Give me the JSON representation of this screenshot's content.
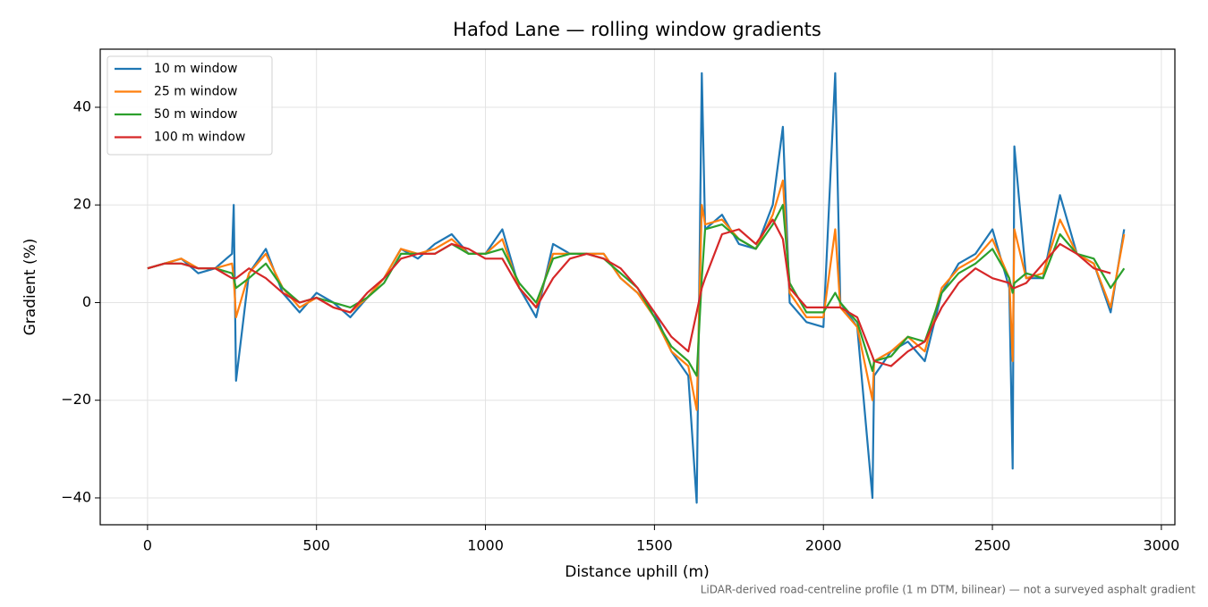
{
  "chart_data": {
    "type": "line",
    "title": "Hafod Lane — rolling window gradients",
    "xlabel": "Distance uphill (m)",
    "ylabel": "Gradient (%)",
    "footnote": "LiDAR-derived road-centreline profile (1 m DTM, bilinear) — not a surveyed asphalt gradient",
    "xlim": [
      -140,
      3040
    ],
    "ylim": [
      -45.5,
      51.9
    ],
    "xticks": [
      0,
      500,
      1000,
      1500,
      2000,
      2500,
      3000
    ],
    "yticks": [
      {
        "value": -40,
        "label": "−40"
      },
      {
        "value": -20,
        "label": "−20"
      },
      0,
      20,
      40
    ],
    "grid": true,
    "legend": "upper-left",
    "x": [
      0,
      50,
      100,
      150,
      200,
      250,
      255,
      262,
      300,
      350,
      400,
      450,
      500,
      550,
      600,
      650,
      700,
      750,
      800,
      850,
      900,
      950,
      1000,
      1050,
      1100,
      1150,
      1200,
      1250,
      1300,
      1350,
      1400,
      1450,
      1500,
      1550,
      1600,
      1625,
      1640,
      1650,
      1700,
      1750,
      1800,
      1850,
      1880,
      1900,
      1950,
      2000,
      2035,
      2050,
      2100,
      2145,
      2150,
      2200,
      2250,
      2300,
      2350,
      2400,
      2450,
      2500,
      2550,
      2560,
      2565,
      2600,
      2650,
      2700,
      2750,
      2800,
      2850,
      2890
    ],
    "series": [
      {
        "name": "10 m window",
        "color": "#1f77b4",
        "values": [
          7,
          8,
          9,
          6,
          7,
          10,
          20,
          -16,
          6,
          11,
          2,
          -2,
          2,
          0,
          -3,
          1,
          5,
          11,
          9,
          12,
          14,
          10,
          10,
          15,
          3,
          -3,
          12,
          10,
          10,
          10,
          5,
          2,
          -2,
          -10,
          -15,
          -41,
          47,
          15,
          18,
          12,
          11,
          20,
          36,
          0,
          -4,
          -5,
          47,
          0,
          -5,
          -40,
          -15,
          -10,
          -8,
          -12,
          2,
          8,
          10,
          15,
          3,
          -34,
          32,
          5,
          5,
          22,
          10,
          8,
          -2,
          15
        ]
      },
      {
        "name": "25 m window",
        "color": "#ff7f0e",
        "values": [
          7,
          8,
          9,
          7,
          7,
          8,
          5,
          -3,
          6,
          10,
          3,
          -1,
          1,
          -1,
          -2,
          1,
          5,
          11,
          10,
          11,
          13,
          10,
          10,
          13,
          3,
          -1,
          10,
          10,
          10,
          10,
          5,
          2,
          -3,
          -10,
          -13,
          -22,
          20,
          16,
          17,
          13,
          11,
          18,
          25,
          2,
          -3,
          -3,
          15,
          -1,
          -5,
          -20,
          -12,
          -10,
          -7,
          -10,
          3,
          7,
          9,
          13,
          5,
          -12,
          15,
          5,
          6,
          17,
          10,
          8,
          -1,
          14
        ]
      },
      {
        "name": "50 m window",
        "color": "#2ca02c",
        "values": [
          7,
          8,
          8,
          7,
          7,
          6,
          5,
          3,
          5,
          8,
          3,
          0,
          1,
          0,
          -1,
          1,
          4,
          10,
          10,
          10,
          12,
          10,
          10,
          11,
          4,
          0,
          9,
          10,
          10,
          9,
          6,
          3,
          -3,
          -9,
          -12,
          -15,
          5,
          15,
          16,
          13,
          11,
          16,
          20,
          4,
          -2,
          -2,
          2,
          0,
          -4,
          -14,
          -12,
          -11,
          -7,
          -8,
          2,
          6,
          8,
          11,
          5,
          2,
          4,
          6,
          5,
          14,
          10,
          9,
          3,
          7
        ]
      },
      {
        "name": "100 m window",
        "color": "#d62728",
        "values": [
          7,
          8,
          8,
          7,
          7,
          5,
          5,
          5,
          7,
          5,
          2,
          0,
          1,
          -1,
          -2,
          2,
          5,
          9,
          10,
          10,
          12,
          11,
          9,
          9,
          3,
          -1,
          5,
          9,
          10,
          9,
          7,
          3,
          -2,
          -7,
          -10,
          -2,
          3,
          5,
          14,
          15,
          12,
          17,
          13,
          3,
          -1,
          -1,
          -1,
          -1,
          -3,
          -11,
          -12,
          -13,
          -10,
          -8,
          -1,
          4,
          7,
          5,
          4,
          3,
          3,
          4,
          8,
          12,
          10,
          7,
          6,
          null
        ]
      }
    ]
  }
}
